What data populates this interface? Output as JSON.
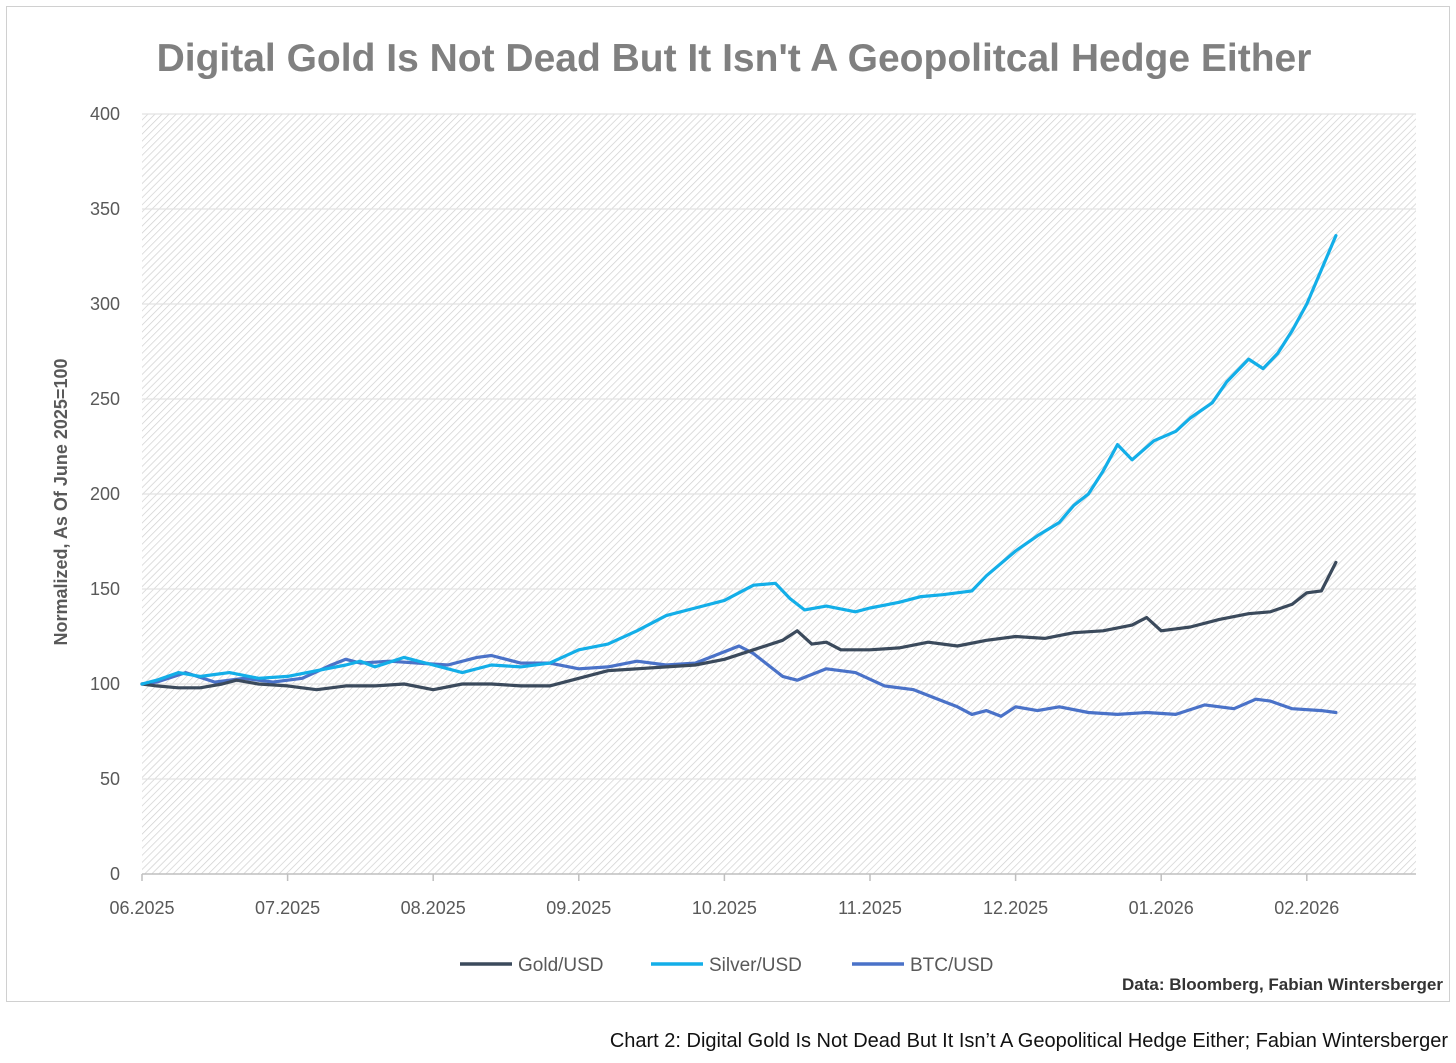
{
  "caption": "Chart 2: Digital Gold Is Not Dead But It Isn’t A Geopolitical Hedge Either; Fabian Wintersberger",
  "chart_data": {
    "type": "line",
    "title": "Digital Gold Is Not Dead But It Isn't A Geopolitcal Hedge Either",
    "xlabel": "",
    "ylabel": "Normalized, As Of June 2025=100",
    "source": "Data: Bloomberg, Fabian Wintersberger",
    "ylim": [
      0,
      400
    ],
    "yticks": [
      "0",
      "50",
      "100",
      "150",
      "200",
      "250",
      "300",
      "350",
      "400"
    ],
    "xlim": [
      0,
      8.75
    ],
    "xticks": [
      "06.2025",
      "07.2025",
      "08.2025",
      "09.2025",
      "10.2025",
      "11.2025",
      "12.2025",
      "01.2026",
      "02.2026"
    ],
    "legend_position": "bottom",
    "series": [
      {
        "name": "Gold/USD",
        "color": "#3b4a5c",
        "x": [
          0,
          0.1,
          0.25,
          0.4,
          0.55,
          0.65,
          0.8,
          1.0,
          1.2,
          1.4,
          1.6,
          1.8,
          2.0,
          2.2,
          2.4,
          2.6,
          2.8,
          3.0,
          3.2,
          3.4,
          3.6,
          3.8,
          4.0,
          4.2,
          4.4,
          4.5,
          4.6,
          4.7,
          4.8,
          5.0,
          5.2,
          5.4,
          5.6,
          5.8,
          6.0,
          6.2,
          6.4,
          6.6,
          6.8,
          6.9,
          7.0,
          7.2,
          7.4,
          7.6,
          7.75,
          7.9,
          8.0,
          8.1,
          8.2
        ],
        "values": [
          100,
          99,
          98,
          98,
          100,
          102,
          100,
          99,
          97,
          99,
          99,
          100,
          97,
          100,
          100,
          99,
          99,
          103,
          107,
          108,
          109,
          110,
          113,
          118,
          123,
          128,
          121,
          122,
          118,
          118,
          119,
          122,
          120,
          123,
          125,
          124,
          127,
          128,
          131,
          135,
          128,
          130,
          134,
          137,
          138,
          142,
          148,
          149,
          164
        ]
      },
      {
        "name": "Silver/USD",
        "color": "#13aee8",
        "x": [
          0,
          0.1,
          0.25,
          0.4,
          0.5,
          0.6,
          0.8,
          1.0,
          1.2,
          1.4,
          1.5,
          1.6,
          1.8,
          2.0,
          2.2,
          2.4,
          2.6,
          2.8,
          3.0,
          3.2,
          3.4,
          3.6,
          3.8,
          4.0,
          4.2,
          4.35,
          4.45,
          4.55,
          4.7,
          4.9,
          5.0,
          5.2,
          5.35,
          5.5,
          5.7,
          5.8,
          6.0,
          6.15,
          6.3,
          6.4,
          6.5,
          6.6,
          6.7,
          6.8,
          6.95,
          7.1,
          7.2,
          7.35,
          7.45,
          7.6,
          7.7,
          7.8,
          7.9,
          8.0,
          8.1,
          8.2
        ],
        "values": [
          100,
          102,
          106,
          104,
          105,
          106,
          103,
          104,
          107,
          110,
          112,
          109,
          114,
          110,
          106,
          110,
          109,
          111,
          118,
          121,
          128,
          136,
          140,
          144,
          152,
          153,
          145,
          139,
          141,
          138,
          140,
          143,
          146,
          147,
          149,
          157,
          170,
          178,
          185,
          194,
          200,
          212,
          226,
          218,
          228,
          233,
          240,
          248,
          259,
          271,
          266,
          274,
          286,
          300,
          318,
          336
        ]
      },
      {
        "name": "BTC/USD",
        "color": "#4a72c8",
        "x": [
          0,
          0.1,
          0.3,
          0.5,
          0.7,
          0.9,
          1.1,
          1.3,
          1.4,
          1.5,
          1.7,
          1.9,
          2.1,
          2.3,
          2.4,
          2.6,
          2.8,
          3.0,
          3.2,
          3.4,
          3.6,
          3.8,
          4.0,
          4.1,
          4.2,
          4.3,
          4.4,
          4.5,
          4.7,
          4.9,
          5.1,
          5.3,
          5.5,
          5.6,
          5.7,
          5.8,
          5.9,
          6.0,
          6.15,
          6.3,
          6.5,
          6.7,
          6.9,
          7.1,
          7.3,
          7.5,
          7.65,
          7.75,
          7.9,
          8.1,
          8.2
        ],
        "values": [
          100,
          101,
          106,
          101,
          103,
          101,
          103,
          110,
          113,
          111,
          112,
          111,
          110,
          114,
          115,
          111,
          111,
          108,
          109,
          112,
          110,
          111,
          117,
          120,
          116,
          110,
          104,
          102,
          108,
          106,
          99,
          97,
          91,
          88,
          84,
          86,
          83,
          88,
          86,
          88,
          85,
          84,
          85,
          84,
          89,
          87,
          92,
          91,
          87,
          86,
          85
        ]
      }
    ]
  }
}
